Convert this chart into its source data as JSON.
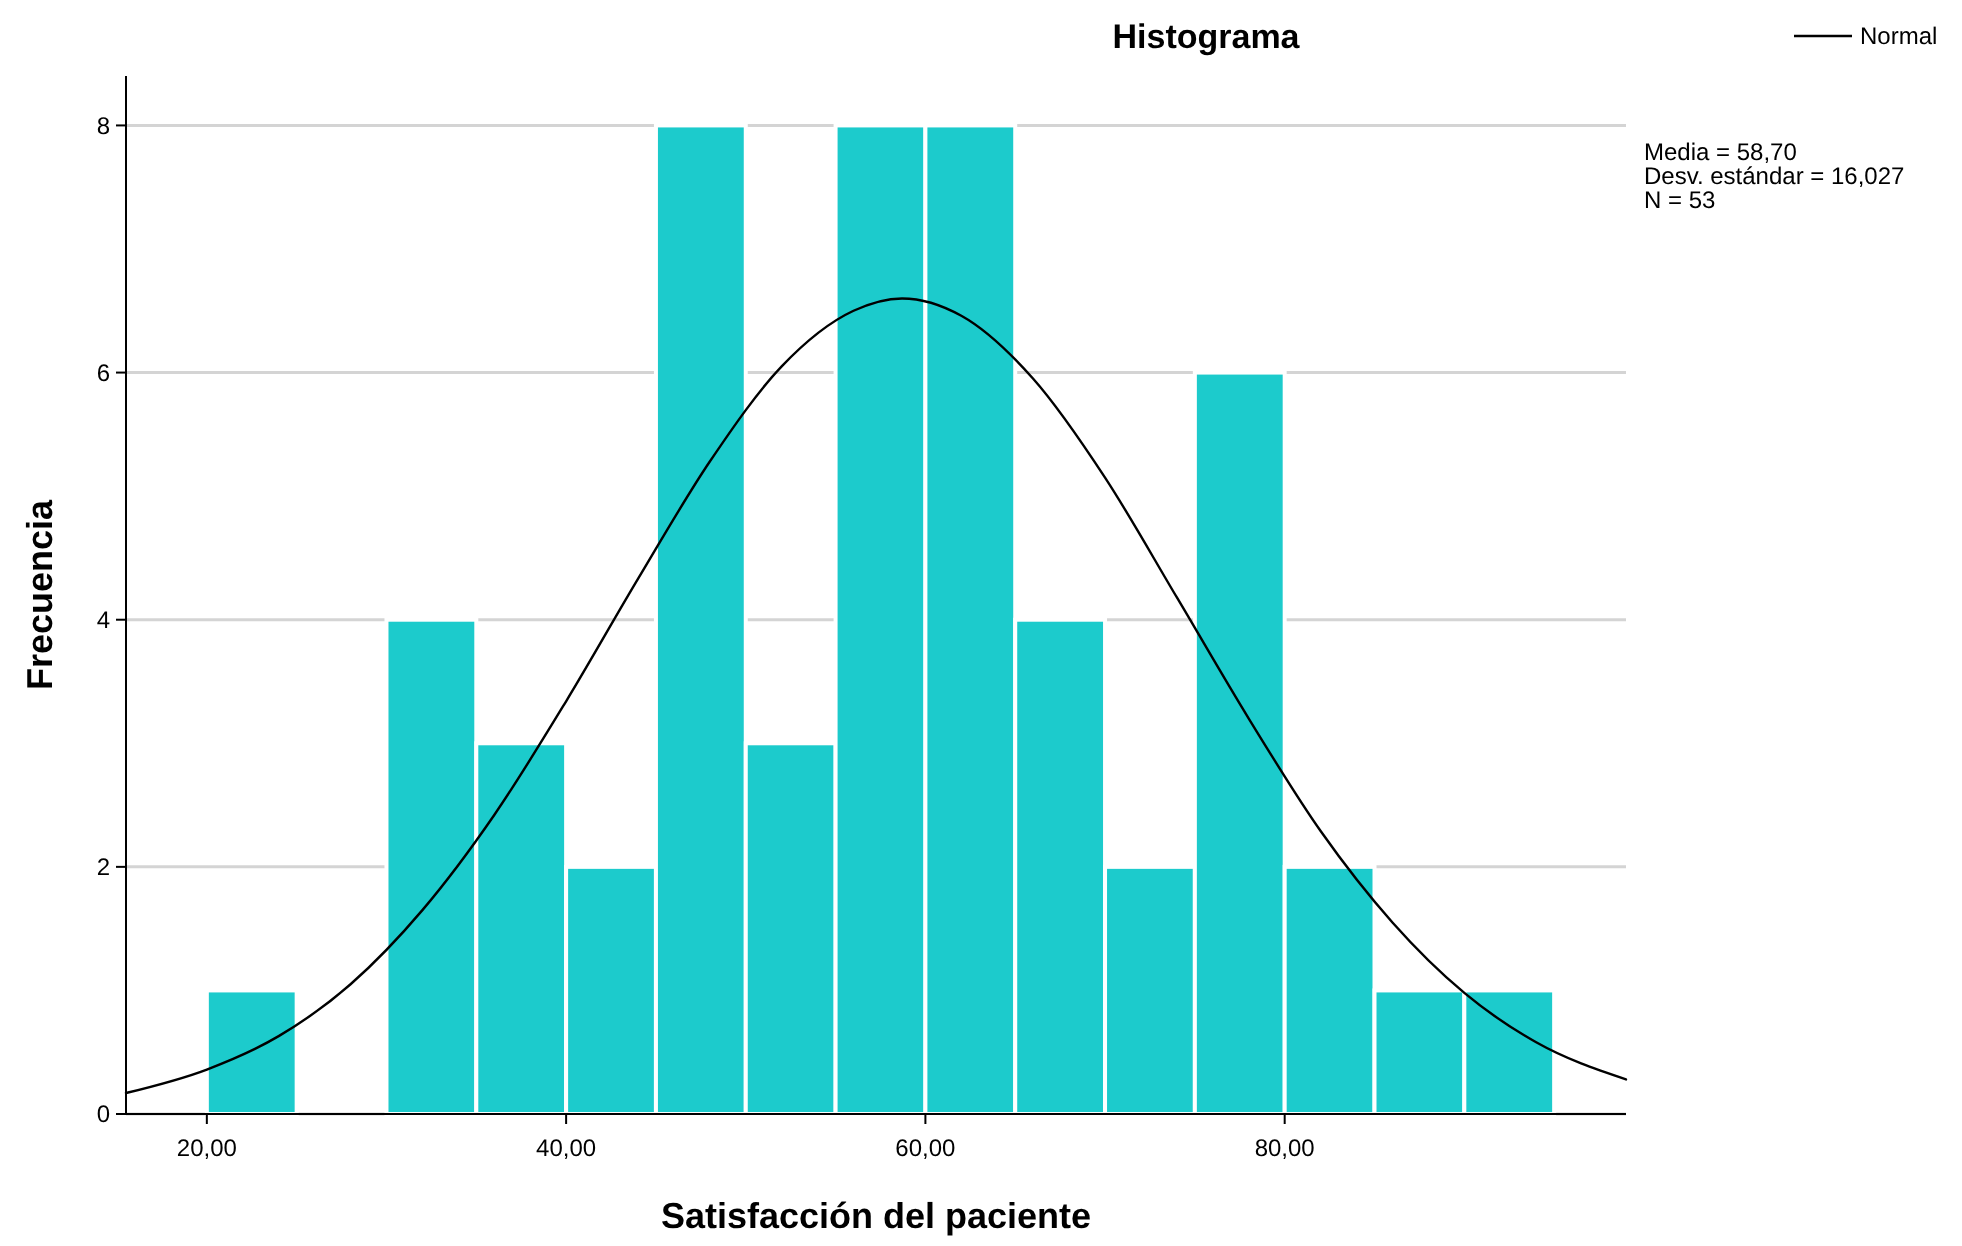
{
  "chart_data": {
    "type": "histogram",
    "title": "Histograma",
    "xlabel": "Satisfacción del paciente",
    "ylabel": "Frecuencia",
    "bins": [
      20,
      25,
      30,
      35,
      40,
      45,
      50,
      55,
      60,
      65,
      70,
      75,
      80,
      85,
      90,
      95
    ],
    "values": [
      1,
      0,
      4,
      3,
      2,
      8,
      3,
      8,
      8,
      4,
      2,
      6,
      2,
      1,
      1
    ],
    "color": "#1ccbcc",
    "series": [
      {
        "name": "Normal",
        "type": "line",
        "color": "#000000",
        "x": [
          15.5,
          20,
          24,
          28,
          32,
          36,
          40,
          44,
          48,
          52,
          56,
          58.7,
          62,
          66,
          70,
          74,
          78,
          82,
          86,
          90,
          94,
          99
        ],
        "values": [
          0.17,
          0.36,
          0.63,
          1.05,
          1.65,
          2.42,
          3.34,
          4.33,
          5.28,
          6.05,
          6.5,
          6.6,
          6.46,
          5.95,
          5.15,
          4.18,
          3.2,
          2.29,
          1.55,
          0.98,
          0.58,
          0.28
        ]
      }
    ],
    "xlim": [
      15.5,
      99
    ],
    "xticks": [
      {
        "value": 20,
        "label": "20,00"
      },
      {
        "value": 40,
        "label": "40,00"
      },
      {
        "value": 60,
        "label": "60,00"
      },
      {
        "value": 80,
        "label": "80,00"
      }
    ],
    "ylim": [
      0,
      8.4
    ],
    "yticks": [
      0,
      2,
      4,
      6,
      8
    ],
    "grid": "y",
    "legend": "top right",
    "annotations": [
      "Media = 58,70",
      "Desv. estándar = 16,027",
      "N = 53"
    ]
  }
}
